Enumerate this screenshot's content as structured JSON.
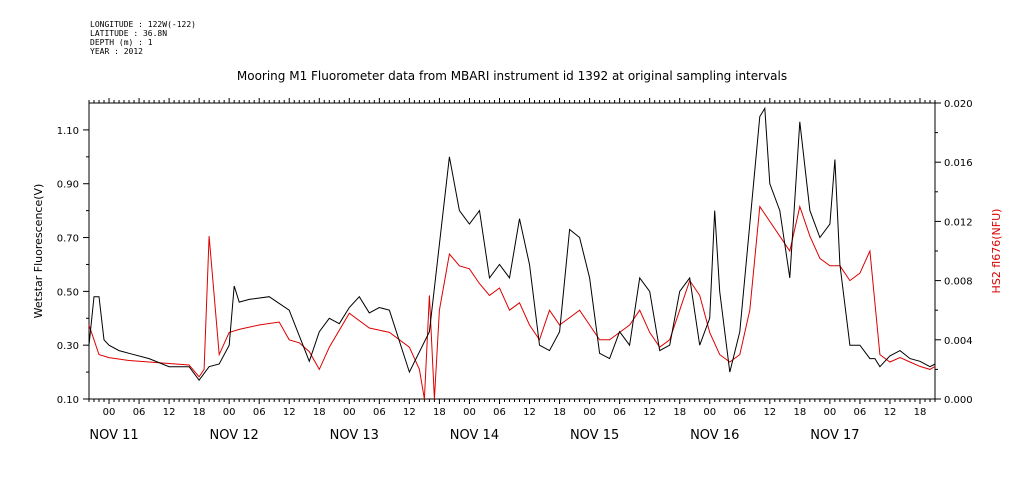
{
  "meta": {
    "lines": [
      "LONGITUDE : 122W(-122)",
      "LATITUDE : 36.8N",
      "DEPTH (m) : 1",
      "YEAR : 2012"
    ]
  },
  "chart_data": {
    "type": "line",
    "title": "Mooring M1 Fluorometer data from MBARI instrument id 1392 at original sampling intervals",
    "ylabel": "Wetstar Fluorescence(V)",
    "y2label": "HS2 fl676(NFU)",
    "xlabel": "",
    "xlim_hours": [
      -4,
      165
    ],
    "xaxis_start_day": "NOV 11",
    "day_labels": [
      "NOV 11",
      "NOV 12",
      "NOV 13",
      "NOV 14",
      "NOV 15",
      "NOV 16",
      "NOV 17"
    ],
    "hour_labels": [
      "00",
      "06",
      "12",
      "18"
    ],
    "ylim": [
      0.1,
      1.2
    ],
    "y_ticks": [
      "0.10",
      "0.30",
      "0.50",
      "0.70",
      "0.90",
      "1.10"
    ],
    "y2lim": [
      0.0,
      0.02
    ],
    "y2_ticks": [
      "0.000",
      "0.004",
      "0.008",
      "0.012",
      "0.016",
      "0.020"
    ],
    "grid": false,
    "series": [
      {
        "name": "Wetstar Fluorescence(V)",
        "color": "#000000",
        "axis": "left",
        "x": [
          -4,
          -3,
          -2,
          -1,
          0,
          2,
          4,
          8,
          12,
          16,
          18,
          20,
          22,
          24,
          25,
          26,
          28,
          32,
          36,
          40,
          42,
          44,
          46,
          48,
          50,
          52,
          54,
          56,
          60,
          64,
          68,
          70,
          72,
          74,
          76,
          78,
          80,
          82,
          84,
          86,
          88,
          90,
          92,
          94,
          96,
          98,
          100,
          102,
          104,
          106,
          108,
          110,
          112,
          114,
          116,
          118,
          120,
          121,
          122,
          124,
          126,
          128,
          130,
          131,
          132,
          134,
          136,
          138,
          140,
          142,
          144,
          145,
          146,
          148,
          150,
          152,
          153,
          154,
          156,
          158,
          160,
          162,
          164,
          165
        ],
        "values": [
          0.3,
          0.48,
          0.48,
          0.32,
          0.3,
          0.28,
          0.27,
          0.25,
          0.22,
          0.22,
          0.17,
          0.22,
          0.23,
          0.3,
          0.52,
          0.46,
          0.47,
          0.48,
          0.43,
          0.24,
          0.35,
          0.4,
          0.38,
          0.44,
          0.48,
          0.42,
          0.44,
          0.43,
          0.2,
          0.35,
          1.0,
          0.8,
          0.75,
          0.8,
          0.55,
          0.6,
          0.55,
          0.77,
          0.6,
          0.3,
          0.28,
          0.35,
          0.73,
          0.7,
          0.55,
          0.27,
          0.25,
          0.35,
          0.3,
          0.55,
          0.5,
          0.28,
          0.3,
          0.5,
          0.55,
          0.3,
          0.4,
          0.8,
          0.5,
          0.2,
          0.35,
          0.75,
          1.15,
          1.18,
          0.9,
          0.8,
          0.55,
          1.13,
          0.8,
          0.7,
          0.75,
          0.99,
          0.6,
          0.3,
          0.3,
          0.25,
          0.25,
          0.22,
          0.26,
          0.28,
          0.25,
          0.24,
          0.22,
          0.23
        ]
      },
      {
        "name": "HS2 fl676(NFU)",
        "color": "#dd0000",
        "axis": "right",
        "x": [
          -4,
          -3,
          -2,
          0,
          4,
          8,
          12,
          16,
          18,
          19,
          20,
          22,
          24,
          26,
          30,
          34,
          36,
          38,
          40,
          42,
          44,
          48,
          52,
          56,
          60,
          62,
          63,
          64,
          65,
          66,
          68,
          70,
          72,
          74,
          76,
          78,
          80,
          82,
          84,
          86,
          88,
          90,
          92,
          94,
          96,
          98,
          100,
          102,
          104,
          106,
          108,
          110,
          112,
          114,
          116,
          118,
          120,
          122,
          124,
          126,
          128,
          130,
          132,
          134,
          136,
          138,
          140,
          142,
          144,
          146,
          148,
          150,
          152,
          154,
          156,
          158,
          160,
          162,
          164,
          165
        ],
        "values": [
          0.005,
          0.004,
          0.003,
          0.0028,
          0.0026,
          0.0025,
          0.0024,
          0.0023,
          0.0015,
          0.002,
          0.011,
          0.003,
          0.0045,
          0.0047,
          0.005,
          0.0052,
          0.004,
          0.0038,
          0.0032,
          0.002,
          0.0035,
          0.0058,
          0.0048,
          0.0045,
          0.0035,
          0.002,
          0.0,
          0.007,
          0.0,
          0.006,
          0.0098,
          0.009,
          0.0088,
          0.0078,
          0.007,
          0.0075,
          0.006,
          0.0065,
          0.005,
          0.004,
          0.006,
          0.005,
          0.0055,
          0.006,
          0.005,
          0.004,
          0.004,
          0.0045,
          0.005,
          0.006,
          0.0045,
          0.0035,
          0.004,
          0.006,
          0.008,
          0.007,
          0.0045,
          0.003,
          0.0025,
          0.003,
          0.006,
          0.013,
          0.012,
          0.011,
          0.01,
          0.013,
          0.011,
          0.0095,
          0.009,
          0.009,
          0.008,
          0.0085,
          0.01,
          0.003,
          0.0025,
          0.0028,
          0.0025,
          0.0022,
          0.002,
          0.0022
        ]
      }
    ]
  }
}
